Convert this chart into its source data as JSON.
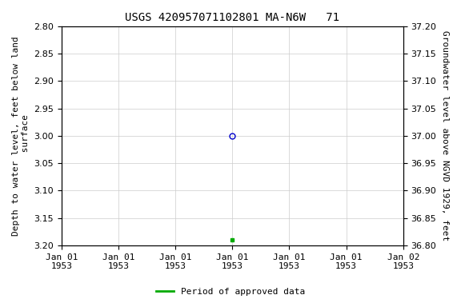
{
  "title": "USGS 420957071102801 MA-N6W   71",
  "ylabel_left": "Depth to water level, feet below land\n surface",
  "ylabel_right": "Groundwater level above NGVD 1929, feet",
  "ylim_left": [
    2.8,
    3.2
  ],
  "ylim_right": [
    36.8,
    37.2
  ],
  "yticks_left": [
    2.8,
    2.85,
    2.9,
    2.95,
    3.0,
    3.05,
    3.1,
    3.15,
    3.2
  ],
  "yticks_right": [
    36.8,
    36.85,
    36.9,
    36.95,
    37.0,
    37.05,
    37.1,
    37.15,
    37.2
  ],
  "xtick_labels": [
    "Jan 01\n1953",
    "Jan 01\n1953",
    "Jan 01\n1953",
    "Jan 01\n1953",
    "Jan 01\n1953",
    "Jan 01\n1953",
    "Jan 02\n1953"
  ],
  "xlim": [
    0,
    6
  ],
  "data_point_x": 3,
  "data_point_y": 3.0,
  "data_point_color": "#0000cc",
  "data_point_marker": "o",
  "approved_point_x": 3,
  "approved_point_y": 3.19,
  "approved_point_color": "#00aa00",
  "approved_point_marker": "s",
  "background_color": "#ffffff",
  "grid_color": "#cccccc",
  "title_fontsize": 10,
  "axis_fontsize": 8,
  "tick_fontsize": 8,
  "legend_label": "Period of approved data",
  "legend_color": "#00aa00"
}
